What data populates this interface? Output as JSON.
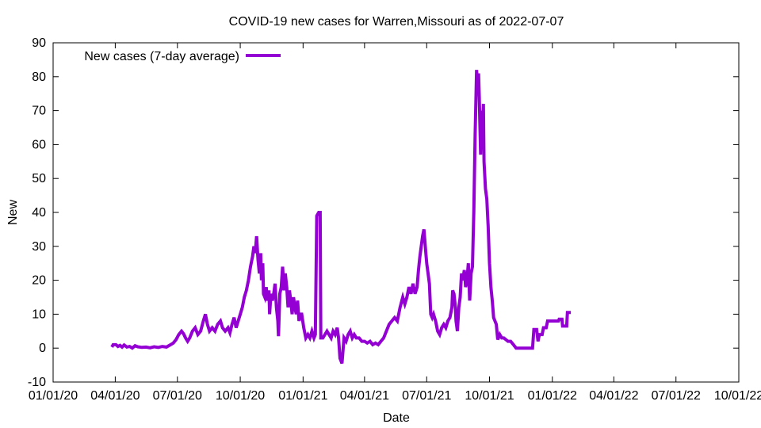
{
  "chart_data": {
    "type": "line",
    "title": "COVID-19 new cases for Warren,Missouri as of 2022-07-07",
    "xlabel": "Date",
    "ylabel": "New",
    "ylim": [
      -10,
      90
    ],
    "yticks": [
      -10,
      0,
      10,
      20,
      30,
      40,
      50,
      60,
      70,
      80,
      90
    ],
    "xlim_days": [
      0,
      1004
    ],
    "xticks": [
      {
        "label": "01/01/20",
        "day": 0
      },
      {
        "label": "04/01/20",
        "day": 91
      },
      {
        "label": "07/01/20",
        "day": 182
      },
      {
        "label": "10/01/20",
        "day": 274
      },
      {
        "label": "01/01/21",
        "day": 366
      },
      {
        "label": "04/01/21",
        "day": 456
      },
      {
        "label": "07/01/21",
        "day": 547
      },
      {
        "label": "10/01/21",
        "day": 639
      },
      {
        "label": "01/01/22",
        "day": 731
      },
      {
        "label": "04/01/22",
        "day": 821
      },
      {
        "label": "07/01/22",
        "day": 912
      },
      {
        "label": "10/01/22",
        "day": 1004
      }
    ],
    "legend": {
      "position": "top-left"
    },
    "series": [
      {
        "name": "New cases (7-day average)",
        "color": "#9400d3",
        "points": [
          [
            86,
            0.3
          ],
          [
            88,
            1
          ],
          [
            92,
            1
          ],
          [
            95,
            0.5
          ],
          [
            98,
            0.8
          ],
          [
            101,
            0.3
          ],
          [
            104,
            0.9
          ],
          [
            108,
            0.3
          ],
          [
            112,
            0.5
          ],
          [
            116,
            0
          ],
          [
            120,
            0.7
          ],
          [
            124,
            0.4
          ],
          [
            130,
            0.2
          ],
          [
            136,
            0.3
          ],
          [
            142,
            0.1
          ],
          [
            148,
            0.4
          ],
          [
            154,
            0.2
          ],
          [
            160,
            0.5
          ],
          [
            166,
            0.3
          ],
          [
            172,
            1
          ],
          [
            176,
            1.5
          ],
          [
            180,
            2.5
          ],
          [
            184,
            4
          ],
          [
            188,
            5
          ],
          [
            191,
            4.2
          ],
          [
            194,
            3
          ],
          [
            197,
            2
          ],
          [
            200,
            3
          ],
          [
            204,
            5
          ],
          [
            208,
            6
          ],
          [
            212,
            4
          ],
          [
            216,
            5
          ],
          [
            220,
            8
          ],
          [
            223,
            10
          ],
          [
            226,
            7
          ],
          [
            229,
            5
          ],
          [
            233,
            6
          ],
          [
            237,
            5
          ],
          [
            241,
            7
          ],
          [
            245,
            8
          ],
          [
            248,
            6
          ],
          [
            252,
            5
          ],
          [
            256,
            6
          ],
          [
            259,
            4.5
          ],
          [
            262,
            7
          ],
          [
            265,
            9
          ],
          [
            268,
            6
          ],
          [
            271,
            8
          ],
          [
            274,
            10
          ],
          [
            277,
            12
          ],
          [
            280,
            15
          ],
          [
            283,
            17
          ],
          [
            286,
            20
          ],
          [
            289,
            24
          ],
          [
            292,
            27
          ],
          [
            294,
            30
          ],
          [
            296,
            28
          ],
          [
            298,
            33
          ],
          [
            300,
            26
          ],
          [
            302,
            22
          ],
          [
            304,
            28
          ],
          [
            305,
            20
          ],
          [
            307,
            25
          ],
          [
            308,
            16
          ],
          [
            310,
            15
          ],
          [
            312,
            18
          ],
          [
            314,
            14
          ],
          [
            316,
            17
          ],
          [
            317,
            10
          ],
          [
            319,
            16
          ],
          [
            321,
            14
          ],
          [
            323,
            16
          ],
          [
            325,
            19
          ],
          [
            327,
            12
          ],
          [
            329,
            8
          ],
          [
            330,
            3.5
          ],
          [
            332,
            16
          ],
          [
            334,
            18
          ],
          [
            336,
            24
          ],
          [
            338,
            17
          ],
          [
            340,
            22
          ],
          [
            342,
            18
          ],
          [
            344,
            12
          ],
          [
            346,
            17
          ],
          [
            348,
            14
          ],
          [
            350,
            10
          ],
          [
            352,
            15
          ],
          [
            354,
            12
          ],
          [
            356,
            10
          ],
          [
            358,
            14
          ],
          [
            360,
            8
          ],
          [
            362,
            10
          ],
          [
            364,
            10
          ],
          [
            367,
            6
          ],
          [
            370,
            3
          ],
          [
            373,
            4
          ],
          [
            376,
            3
          ],
          [
            379,
            5
          ],
          [
            382,
            3
          ],
          [
            384,
            4
          ],
          [
            386,
            39
          ],
          [
            389,
            40
          ],
          [
            391,
            40
          ],
          [
            392,
            3
          ],
          [
            395,
            3
          ],
          [
            398,
            4
          ],
          [
            401,
            5
          ],
          [
            404,
            4
          ],
          [
            407,
            3
          ],
          [
            410,
            5
          ],
          [
            413,
            4
          ],
          [
            416,
            6
          ],
          [
            418,
            3
          ],
          [
            420,
            -3
          ],
          [
            423,
            -4.5
          ],
          [
            426,
            3
          ],
          [
            429,
            2
          ],
          [
            432,
            4
          ],
          [
            435,
            5
          ],
          [
            438,
            3
          ],
          [
            441,
            4
          ],
          [
            444,
            3
          ],
          [
            448,
            3
          ],
          [
            452,
            2
          ],
          [
            456,
            2
          ],
          [
            460,
            1.5
          ],
          [
            464,
            2
          ],
          [
            468,
            1
          ],
          [
            472,
            1.5
          ],
          [
            476,
            1
          ],
          [
            480,
            2
          ],
          [
            484,
            3
          ],
          [
            488,
            5
          ],
          [
            492,
            7
          ],
          [
            496,
            8
          ],
          [
            500,
            9
          ],
          [
            504,
            8
          ],
          [
            508,
            12
          ],
          [
            512,
            15
          ],
          [
            515,
            13
          ],
          [
            518,
            15
          ],
          [
            521,
            18
          ],
          [
            524,
            16
          ],
          [
            527,
            19
          ],
          [
            530,
            16
          ],
          [
            533,
            18
          ],
          [
            535,
            23
          ],
          [
            537,
            27
          ],
          [
            539,
            30
          ],
          [
            541,
            33
          ],
          [
            543,
            35
          ],
          [
            545,
            30
          ],
          [
            547,
            25
          ],
          [
            549,
            22
          ],
          [
            551,
            19
          ],
          [
            553,
            10
          ],
          [
            555,
            9
          ],
          [
            557,
            10
          ],
          [
            560,
            8
          ],
          [
            563,
            5
          ],
          [
            566,
            4
          ],
          [
            569,
            6
          ],
          [
            572,
            7
          ],
          [
            575,
            6
          ],
          [
            578,
            8
          ],
          [
            581,
            9
          ],
          [
            584,
            12
          ],
          [
            585,
            17
          ],
          [
            587,
            16
          ],
          [
            589,
            12
          ],
          [
            590,
            8
          ],
          [
            592,
            5
          ],
          [
            594,
            12
          ],
          [
            596,
            15
          ],
          [
            598,
            22
          ],
          [
            600,
            20
          ],
          [
            602,
            23
          ],
          [
            604,
            18
          ],
          [
            606,
            20
          ],
          [
            608,
            25
          ],
          [
            610,
            14
          ],
          [
            612,
            22
          ],
          [
            614,
            24
          ],
          [
            616,
            40
          ],
          [
            618,
            63
          ],
          [
            620,
            82
          ],
          [
            622,
            76
          ],
          [
            623,
            81
          ],
          [
            624,
            74
          ],
          [
            626,
            57
          ],
          [
            627,
            70
          ],
          [
            628,
            62
          ],
          [
            630,
            72
          ],
          [
            631,
            55
          ],
          [
            633,
            47
          ],
          [
            635,
            44
          ],
          [
            637,
            36
          ],
          [
            639,
            25
          ],
          [
            641,
            18
          ],
          [
            643,
            14
          ],
          [
            645,
            9
          ],
          [
            647,
            8
          ],
          [
            649,
            7
          ],
          [
            651,
            2.5
          ],
          [
            654,
            4
          ],
          [
            657,
            3
          ],
          [
            660,
            3
          ],
          [
            663,
            2.5
          ],
          [
            666,
            2
          ],
          [
            670,
            2
          ],
          [
            674,
            1
          ],
          [
            678,
            0
          ],
          [
            684,
            0
          ],
          [
            690,
            0
          ],
          [
            696,
            0
          ],
          [
            702,
            0
          ],
          [
            704,
            5.5
          ],
          [
            708,
            5.5
          ],
          [
            710,
            2
          ],
          [
            712,
            4
          ],
          [
            716,
            4
          ],
          [
            718,
            6
          ],
          [
            722,
            6
          ],
          [
            724,
            8
          ],
          [
            730,
            8
          ],
          [
            736,
            8
          ],
          [
            740,
            8
          ],
          [
            741,
            8.5
          ],
          [
            745,
            8.5
          ],
          [
            746,
            6.5
          ],
          [
            752,
            6.5
          ],
          [
            753,
            10.5
          ],
          [
            758,
            10.5
          ]
        ]
      }
    ]
  }
}
